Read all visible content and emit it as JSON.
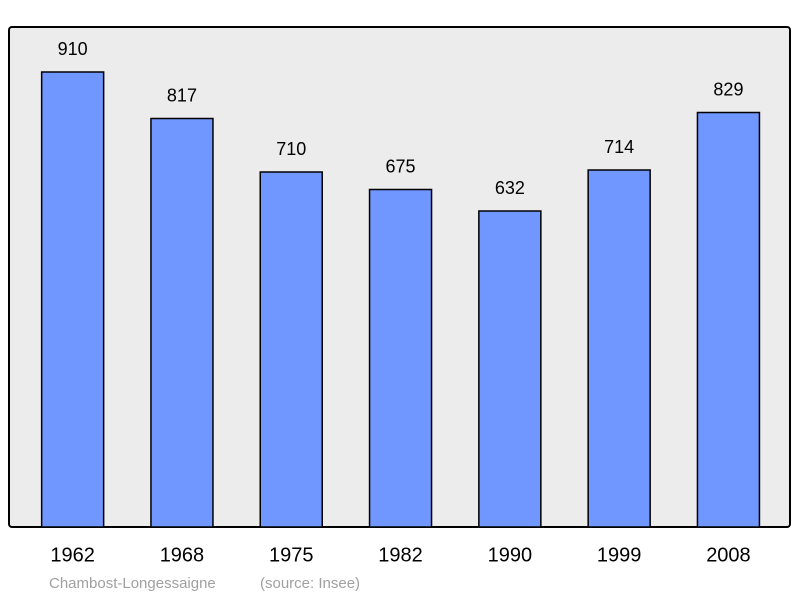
{
  "chart_data": {
    "type": "bar",
    "categories": [
      "1962",
      "1968",
      "1975",
      "1982",
      "1990",
      "1999",
      "2008"
    ],
    "values": [
      910,
      817,
      710,
      675,
      632,
      714,
      829
    ],
    "color": "#7096ff",
    "ylim": [
      0,
      1000
    ],
    "caption": "Chambost-Longessaigne",
    "source": "(source: Insee)"
  }
}
